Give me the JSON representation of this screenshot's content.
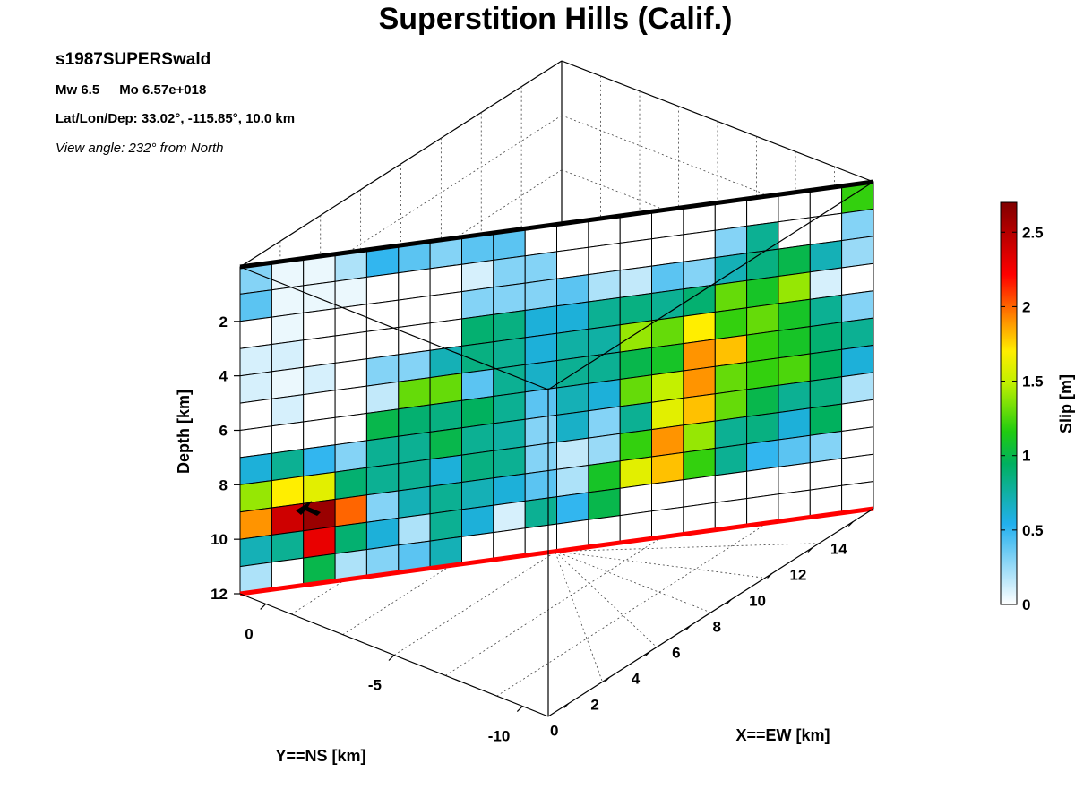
{
  "header": {
    "title": "Superstition Hills (Calif.)",
    "event_id": "s1987SUPERSwald",
    "magnitude": "Mw 6.5",
    "moment": "Mo 6.57e+018",
    "location": "Lat/Lon/Dep: 33.02°, -115.85°, 10.0 km",
    "view_angle": "View angle: 232° from North"
  },
  "chart_data": {
    "type": "heatmap",
    "title": "Superstition Hills (Calif.)",
    "xlabel": "X==EW [km]",
    "ylabel": "Y==NS [km]",
    "zlabel": "Depth [km]",
    "colorbar_label": "Slip [m]",
    "x_ticks": [
      "0",
      "2",
      "4",
      "6",
      "8",
      "10",
      "12",
      "14"
    ],
    "y_ticks": [
      "0",
      "-5",
      "-10"
    ],
    "depth_ticks": [
      "2",
      "4",
      "6",
      "8",
      "10",
      "12"
    ],
    "colorbar_ticks": [
      "0",
      "0.5",
      "1",
      "1.5",
      "2",
      "2.5"
    ],
    "xlim": [
      -1,
      15
    ],
    "ylim": [
      -11,
      1
    ],
    "depth_range": [
      0,
      12
    ],
    "slip_range": [
      0,
      2.7
    ],
    "grid": true,
    "fault_trace_color": "#ff0000",
    "fault_top_color": "#000000",
    "slip": [
      [
        0.3,
        0.05,
        0.05,
        0.2,
        0.5,
        0.4,
        0.3,
        0.4,
        0.4,
        0.0,
        0.0,
        0.0,
        0.0,
        0.0,
        0.0,
        0.0,
        0.0,
        0.0,
        0.0,
        1.2
      ],
      [
        0.4,
        0.05,
        0.05,
        0.05,
        0.0,
        0.0,
        0.0,
        0.1,
        0.3,
        0.3,
        0.0,
        0.0,
        0.0,
        0.0,
        0.0,
        0.3,
        0.8,
        0.0,
        0.0,
        0.3
      ],
      [
        0.0,
        0.05,
        0.0,
        0.0,
        0.0,
        0.0,
        0.0,
        0.3,
        0.3,
        0.3,
        0.4,
        0.2,
        0.15,
        0.4,
        0.3,
        0.7,
        0.85,
        1.0,
        0.7,
        0.25
      ],
      [
        0.1,
        0.1,
        0.0,
        0.0,
        0.0,
        0.0,
        0.0,
        0.9,
        0.85,
        0.6,
        0.6,
        0.8,
        0.85,
        0.8,
        0.9,
        1.3,
        1.1,
        1.4,
        0.1,
        0.0
      ],
      [
        0.1,
        0.05,
        0.1,
        0.0,
        0.3,
        0.3,
        0.7,
        0.85,
        0.8,
        0.6,
        0.75,
        0.75,
        1.4,
        1.3,
        1.7,
        1.2,
        1.3,
        1.1,
        0.8,
        0.3
      ],
      [
        0.0,
        0.1,
        0.0,
        0.0,
        0.15,
        1.3,
        1.3,
        0.4,
        0.8,
        0.65,
        0.8,
        0.8,
        1.0,
        1.1,
        1.9,
        1.8,
        1.2,
        1.1,
        0.9,
        0.8
      ],
      [
        0.0,
        0.0,
        0.0,
        0.0,
        1.0,
        0.9,
        0.85,
        0.95,
        0.8,
        0.4,
        0.7,
        0.6,
        1.3,
        1.5,
        1.9,
        1.3,
        1.2,
        1.25,
        0.95,
        0.6
      ],
      [
        0.6,
        0.8,
        0.5,
        0.3,
        0.8,
        0.8,
        1.0,
        0.8,
        0.75,
        0.3,
        0.65,
        0.3,
        0.8,
        1.6,
        1.8,
        1.3,
        1.0,
        0.8,
        0.85,
        0.2
      ],
      [
        1.4,
        1.7,
        1.6,
        0.9,
        0.8,
        0.8,
        0.6,
        0.85,
        0.8,
        0.3,
        0.15,
        0.25,
        1.2,
        1.9,
        1.4,
        0.8,
        0.85,
        0.6,
        0.95,
        0.0
      ],
      [
        1.9,
        2.4,
        2.6,
        2.0,
        0.3,
        0.7,
        0.8,
        0.7,
        0.6,
        0.4,
        0.2,
        1.1,
        1.6,
        1.8,
        1.2,
        0.8,
        0.5,
        0.4,
        0.3,
        0.0
      ],
      [
        0.7,
        0.8,
        2.3,
        0.9,
        0.6,
        0.2,
        0.8,
        0.6,
        0.1,
        0.8,
        0.5,
        1.0,
        0.0,
        0.0,
        0.0,
        0.0,
        0.0,
        0.0,
        0.0,
        0.0
      ],
      [
        0.2,
        0.0,
        1.0,
        0.2,
        0.3,
        0.4,
        0.7,
        0.0,
        0.0,
        0.0,
        0.0,
        0.0,
        0.0,
        0.0,
        0.0,
        0.0,
        0.0,
        0.0,
        0.0,
        0.0
      ]
    ]
  }
}
